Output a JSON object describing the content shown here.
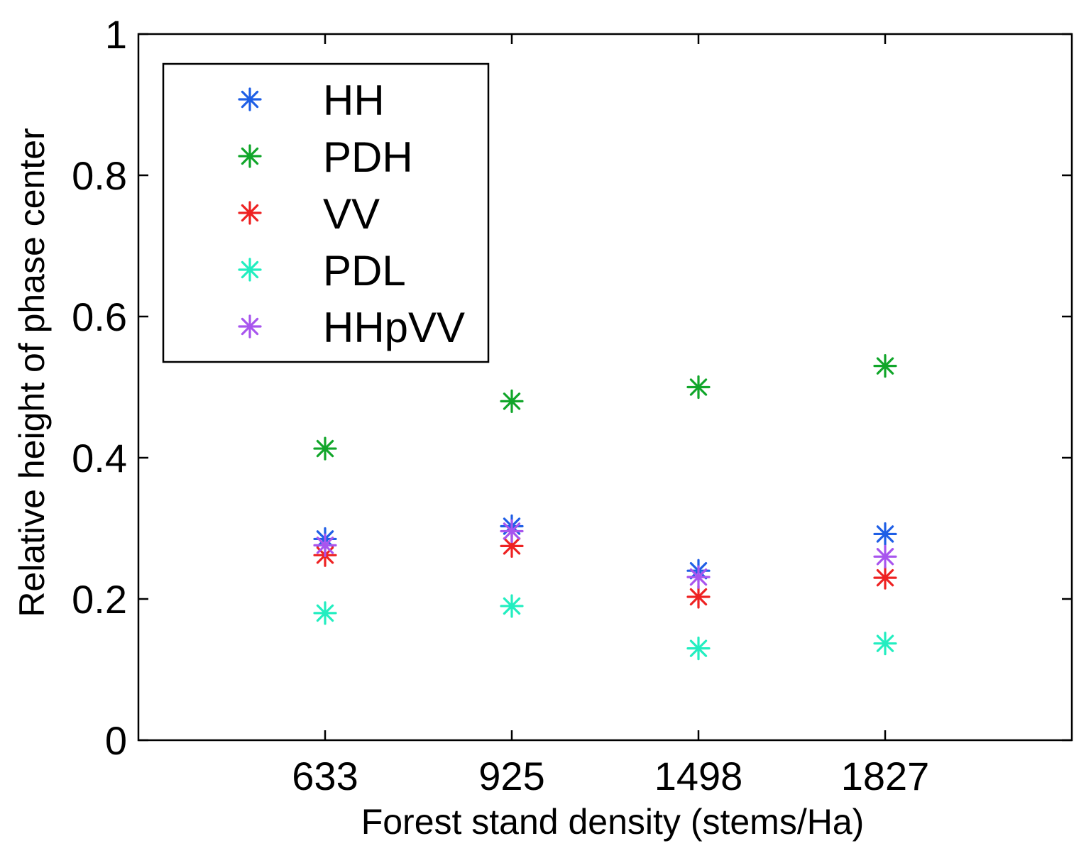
{
  "chart_data": {
    "type": "scatter",
    "title": "",
    "xlabel": "Forest stand density (stems/Ha)",
    "ylabel": "Relative height of phase center",
    "categories": [
      "633",
      "925",
      "1498",
      "1827"
    ],
    "ylim": [
      0,
      1
    ],
    "yticks": [
      "0",
      "0.2",
      "0.4",
      "0.6",
      "0.8",
      "1"
    ],
    "grid": false,
    "legend_position": "top-left",
    "marker": "asterisk",
    "series": [
      {
        "name": "HH",
        "color": "#1f5fe6",
        "values": [
          0.285,
          0.303,
          0.24,
          0.292
        ]
      },
      {
        "name": "PDH",
        "color": "#11a62a",
        "values": [
          0.413,
          0.48,
          0.5,
          0.53
        ]
      },
      {
        "name": "VV",
        "color": "#ee2222",
        "values": [
          0.262,
          0.275,
          0.203,
          0.23
        ]
      },
      {
        "name": "PDL",
        "color": "#22eec0",
        "values": [
          0.18,
          0.19,
          0.13,
          0.137
        ]
      },
      {
        "name": "HHpVV",
        "color": "#a855ee",
        "values": [
          0.276,
          0.296,
          0.231,
          0.26
        ]
      }
    ]
  }
}
